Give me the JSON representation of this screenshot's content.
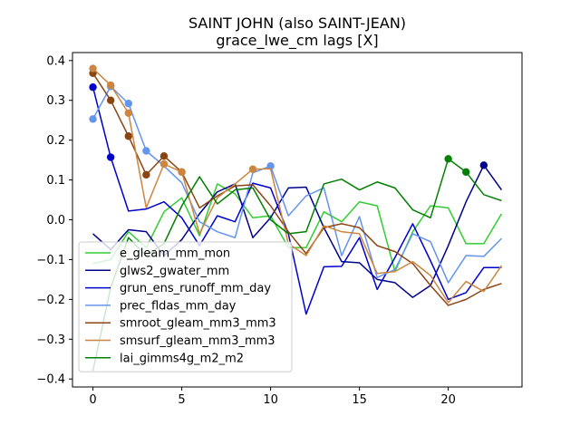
{
  "chart_data": {
    "type": "line",
    "title": "SAINT JOHN (also SAINT-JEAN)",
    "subtitle": "grace_lwe_cm lags [X]",
    "xlabel": "",
    "ylabel": "",
    "xlim": [
      -1.15,
      24.15
    ],
    "ylim": [
      -0.42,
      0.42
    ],
    "xticks": [
      0,
      5,
      10,
      15,
      20
    ],
    "yticks": [
      -0.4,
      -0.3,
      -0.2,
      -0.1,
      0.0,
      0.1,
      0.2,
      0.3,
      0.4
    ],
    "xtick_labels": [
      "0",
      "5",
      "10",
      "15",
      "20"
    ],
    "ytick_labels": [
      "−0.4",
      "−0.3",
      "−0.2",
      "−0.1",
      "0.0",
      "0.1",
      "0.2",
      "0.3",
      "0.4"
    ],
    "grid": false,
    "legend_position": "lower-left",
    "x": [
      0,
      1,
      2,
      3,
      4,
      5,
      6,
      7,
      8,
      9,
      10,
      11,
      12,
      13,
      14,
      15,
      16,
      17,
      18,
      19,
      20,
      21,
      22,
      23
    ],
    "series": [
      {
        "name": "e_gleam_mm_mon",
        "color": "#32cd32",
        "values": [
          -0.11,
          -0.1,
          -0.03,
          -0.07,
          0.02,
          0.055,
          -0.04,
          0.09,
          0.065,
          0.005,
          0.01,
          -0.07,
          -0.07,
          0.02,
          -0.005,
          0.045,
          0.035,
          -0.13,
          -0.03,
          0.035,
          0.03,
          -0.06,
          -0.06,
          0.015
        ],
        "markers": []
      },
      {
        "name": "glws2_gwater_mm",
        "color": "#00008b",
        "values": [
          -0.035,
          -0.075,
          -0.025,
          -0.03,
          -0.09,
          -0.05,
          0.015,
          0.07,
          0.09,
          -0.045,
          0.005,
          0.08,
          0.082,
          -0.02,
          -0.105,
          -0.108,
          -0.15,
          -0.158,
          -0.195,
          -0.165,
          -0.065,
          0.045,
          0.137,
          0.075
        ],
        "markers": [
          22
        ]
      },
      {
        "name": "grun_ens_runoff_mm_day",
        "color": "#0000cd",
        "values": [
          0.333,
          0.157,
          0.022,
          0.027,
          0.045,
          0.005,
          -0.065,
          0.01,
          -0.005,
          0.092,
          0.08,
          -0.035,
          -0.237,
          -0.118,
          -0.117,
          -0.045,
          -0.175,
          -0.095,
          -0.01,
          -0.103,
          -0.2,
          -0.183,
          -0.12,
          -0.12
        ],
        "markers": [
          0,
          1
        ]
      },
      {
        "name": "prec_fldas_mm_day",
        "color": "#6495ed",
        "values": [
          0.253,
          0.335,
          0.292,
          0.173,
          0.135,
          0.093,
          -0.005,
          -0.03,
          -0.045,
          0.118,
          0.135,
          0.01,
          0.06,
          0.08,
          -0.09,
          0.008,
          -0.145,
          -0.125,
          -0.035,
          -0.055,
          -0.158,
          -0.09,
          -0.092,
          -0.047
        ],
        "markers": [
          0,
          1,
          2,
          3,
          10
        ]
      },
      {
        "name": "smroot_gleam_mm3_mm3",
        "color": "#8b4513",
        "values": [
          0.368,
          0.3,
          0.21,
          0.113,
          0.16,
          0.12,
          0.03,
          0.06,
          0.085,
          0.088,
          0.035,
          -0.03,
          -0.085,
          -0.02,
          -0.01,
          -0.02,
          -0.065,
          -0.08,
          -0.11,
          -0.165,
          -0.215,
          -0.2,
          -0.175,
          -0.16
        ],
        "markers": [
          0,
          1,
          2,
          3,
          4,
          5
        ]
      },
      {
        "name": "smsurf_gleam_mm3_mm3",
        "color": "#cd853f",
        "values": [
          0.38,
          0.338,
          0.268,
          0.03,
          0.14,
          0.12,
          -0.035,
          0.055,
          0.09,
          0.127,
          0.128,
          -0.06,
          -0.09,
          -0.015,
          -0.03,
          -0.035,
          -0.135,
          -0.13,
          -0.105,
          -0.14,
          -0.208,
          -0.155,
          -0.18,
          -0.115
        ],
        "markers": [
          0,
          1,
          2,
          4,
          5,
          9
        ]
      },
      {
        "name": "lai_gimms4g_m2_m2",
        "color": "#008000",
        "values": [
          -0.38,
          -0.17,
          -0.045,
          -0.09,
          -0.06,
          0.035,
          0.108,
          0.04,
          0.075,
          0.08,
          0.0,
          -0.035,
          -0.03,
          0.09,
          0.102,
          0.075,
          0.095,
          0.08,
          0.025,
          0.005,
          0.153,
          0.12,
          0.063,
          0.048
        ],
        "markers": [
          20,
          21
        ]
      }
    ]
  }
}
